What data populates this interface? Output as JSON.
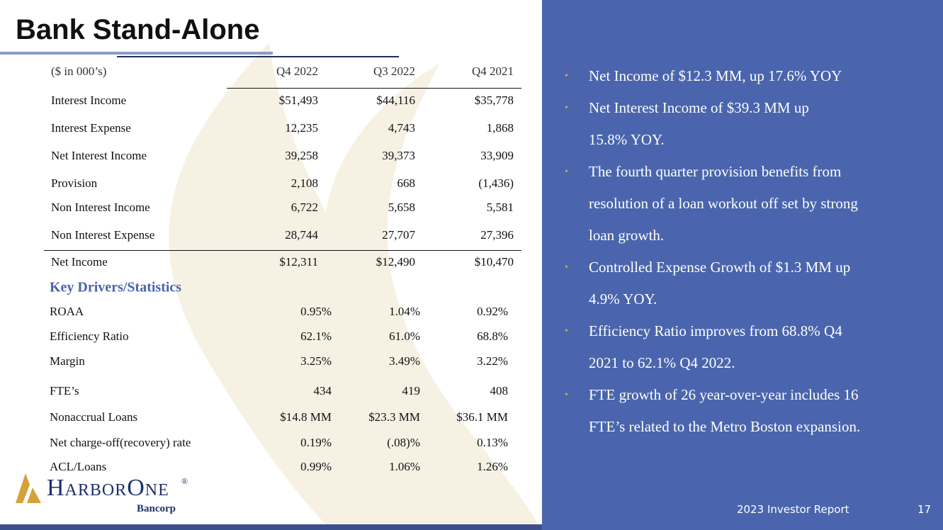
{
  "title": "Bank Stand-Alone",
  "table": {
    "header": [
      "($ in 000’s)",
      "Q4 2022",
      "Q3 2022",
      "Q4 2021"
    ],
    "rows": [
      [
        "Interest Income",
        "$51,493",
        "$44,116",
        "$35,778"
      ],
      [
        "Interest Expense",
        "12,235",
        "4,743",
        "1,868"
      ],
      [
        "Net Interest Income",
        "39,258",
        "39,373",
        "33,909"
      ],
      [
        "Provision",
        "2,108",
        "668",
        "(1,436)"
      ],
      [
        "Non Interest Income",
        "6,722",
        "5,658",
        "5,581"
      ],
      [
        "Non Interest Expense",
        "28,744",
        "27,707",
        "27,396"
      ],
      [
        "Net Income",
        "$12,311",
        "$12,490",
        "$10,470"
      ]
    ],
    "section": "Key Drivers/Statistics",
    "stats": [
      [
        "ROAA",
        "0.95%",
        "1.04%",
        "0.92%"
      ],
      [
        "Efficiency Ratio",
        "62.1%",
        "61.0%",
        "68.8%"
      ],
      [
        "Margin",
        "3.25%",
        "3.49%",
        "3.22%"
      ],
      [
        "FTE’s",
        "434",
        "419",
        "408"
      ],
      [
        "Nonaccrual Loans",
        "$14.8 MM",
        "$23.3 MM",
        "$36.1 MM"
      ],
      [
        "Net charge-off(recovery) rate",
        "0.19%",
        "(.08)%",
        "0.13%"
      ],
      [
        "ACL/Loans",
        "0.99%",
        "1.06%",
        "1.26%"
      ]
    ]
  },
  "bullets": [
    {
      "lines": [
        "Net Income of $12.3 MM,  up 17.6% YOY"
      ]
    },
    {
      "lines": [
        "Net Interest Income of $39.3 MM up",
        "15.8% YOY."
      ]
    },
    {
      "lines": [
        "The fourth quarter provision benefits from",
        "resolution of a loan workout off set by strong",
        "loan growth."
      ]
    },
    {
      "lines": [
        "Controlled Expense Growth of $1.3 MM up",
        "4.9% YOY."
      ]
    },
    {
      "lines": [
        "Efficiency Ratio improves from 68.8% Q4",
        "2021 to 62.1% Q4 2022."
      ]
    },
    {
      "lines": [
        "FTE growth of 26 year-over-year includes 16",
        "FTE’s related to the Metro Boston expansion."
      ]
    }
  ],
  "logo": {
    "name": "HarborOne",
    "mark": "®",
    "sub": "Bancorp"
  },
  "footer": {
    "report": "2023 Investor Report",
    "page": "17"
  }
}
